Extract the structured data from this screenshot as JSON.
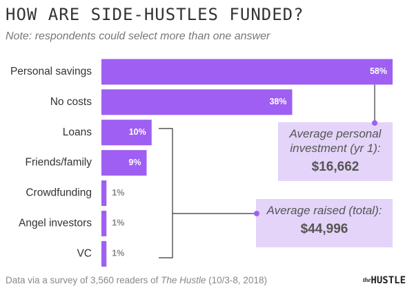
{
  "chart_data": {
    "type": "barh",
    "title": "HOW ARE SIDE-HUSTLES FUNDED?",
    "subtitle": "Note: respondents could select more than one answer",
    "categories": [
      "Personal savings",
      "No costs",
      "Loans",
      "Friends/family",
      "Crowdfunding",
      "Angel investors",
      "VC"
    ],
    "values": [
      58,
      38,
      10,
      9,
      1,
      1,
      1
    ],
    "value_labels": [
      "58%",
      "38%",
      "10%",
      "9%",
      "1%",
      "1%",
      "1%"
    ],
    "color": "#9e5ff2",
    "annotations": [
      {
        "text": "Average personal investment (yr 1):",
        "value": "$16,662"
      },
      {
        "text": "Average raised (total):",
        "value": "$44,996"
      }
    ],
    "source": [
      "Data via a survey of 3,560 readers of ",
      "The Hustle",
      " (10/3-8, 2018)"
    ],
    "logo": [
      "the",
      "HUSTLE"
    ]
  }
}
